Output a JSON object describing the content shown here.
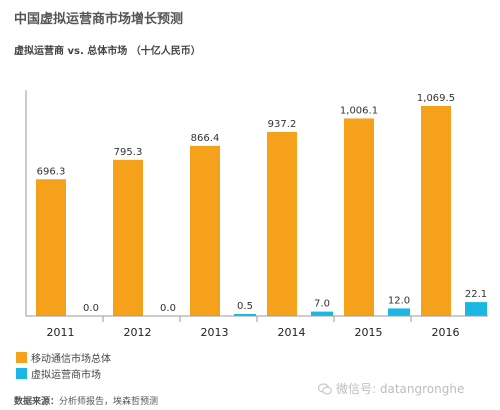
{
  "header": {
    "title": "中国虚拟运营商市场增长预测",
    "subtitle": "虚拟运营商 vs. 总体市场 （十亿人民币）"
  },
  "chart_data": {
    "type": "bar",
    "categories": [
      "2011",
      "2012",
      "2013",
      "2014",
      "2015",
      "2016"
    ],
    "series": [
      {
        "name": "移动通信市场总体",
        "values": [
          696.3,
          795.3,
          866.4,
          937.2,
          1006.1,
          1069.5
        ],
        "labels": [
          "696.3",
          "795.3",
          "866.4",
          "937.2",
          "1,006.1",
          "1,069.5"
        ],
        "color": "#f5a11c"
      },
      {
        "name": "虚拟运营商市场",
        "values": [
          0.0,
          0.0,
          0.5,
          7.0,
          12.0,
          22.1
        ],
        "labels": [
          "0.0",
          "0.0",
          "0.5",
          "7.0",
          "12.0",
          "22.1"
        ],
        "color": "#19b7e3"
      }
    ],
    "ylim": [
      0,
      1100
    ],
    "grid": false,
    "legend_placement": "bottom-left"
  },
  "footer": {
    "source_label": "数据来源：",
    "source_text": "分析师报告，埃森哲预测",
    "watermark": "微信号: datangronghe",
    "watermark_icon": "wechat-icon"
  }
}
